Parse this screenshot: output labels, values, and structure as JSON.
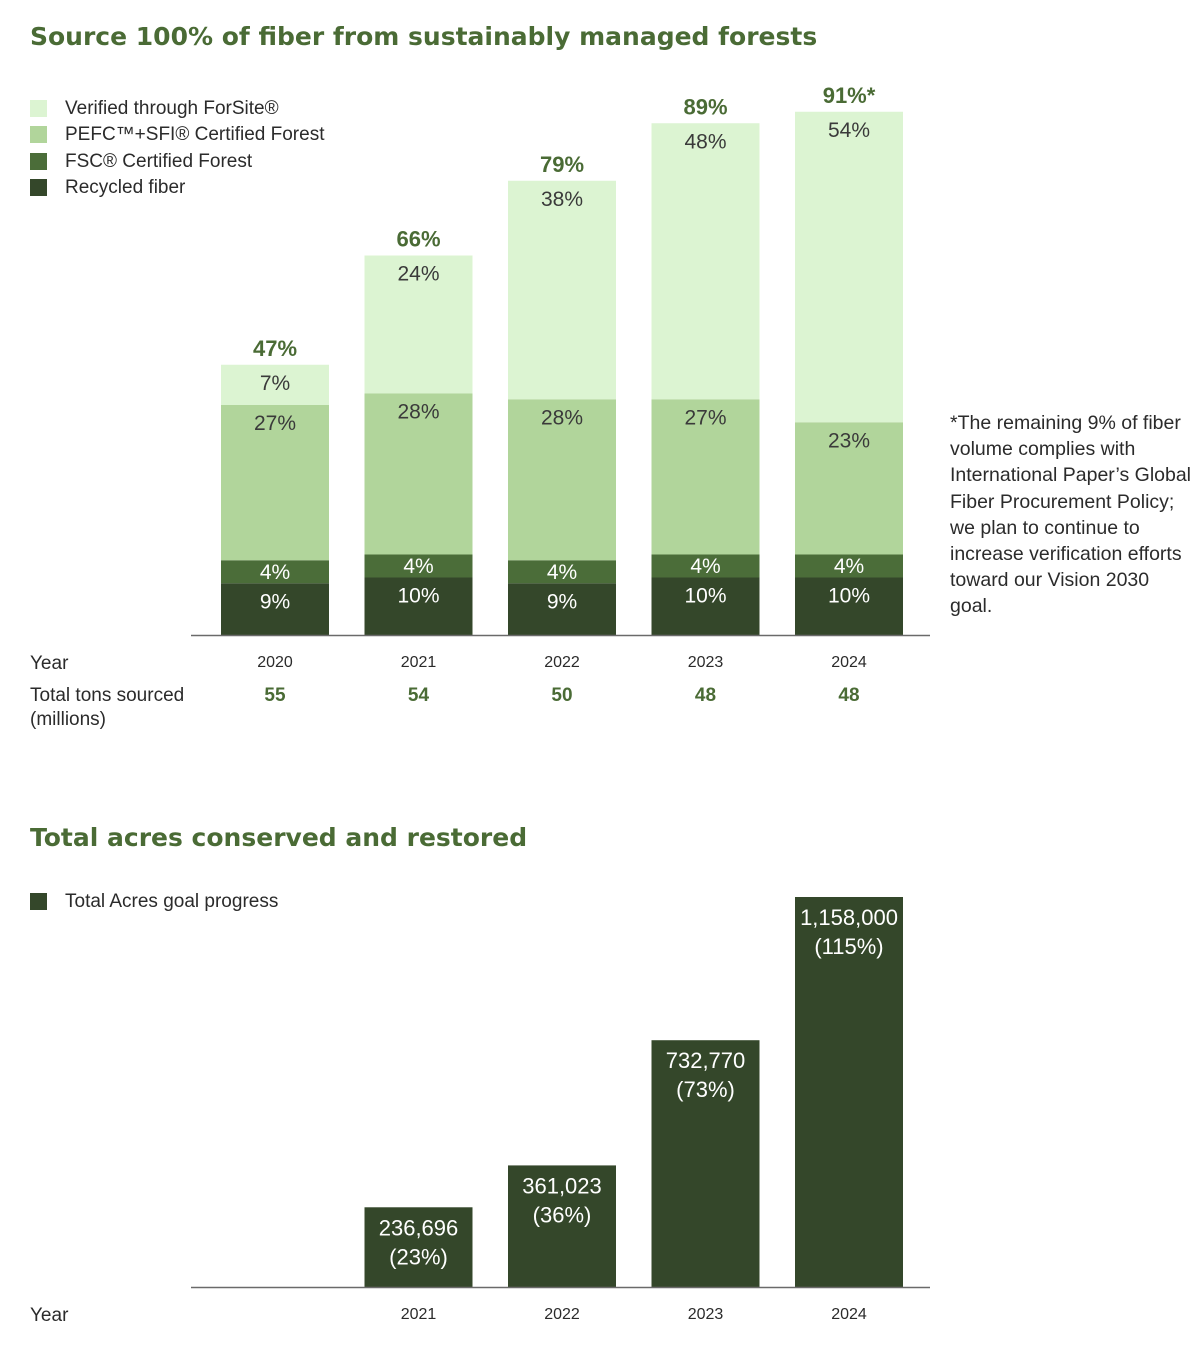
{
  "chart_data": [
    {
      "type": "bar",
      "stacked": true,
      "title": "Source 100% of fiber from sustainably managed forests",
      "categories": [
        "2020",
        "2021",
        "2022",
        "2023",
        "2024"
      ],
      "series": [
        {
          "name": "Recycled fiber",
          "values": [
            9,
            10,
            9,
            10,
            10
          ],
          "labels": [
            "9%",
            "10%",
            "9%",
            "10%",
            "10%"
          ],
          "color": "#34472a",
          "text_color": "#ffffff"
        },
        {
          "name": "FSC® Certified Forest",
          "values": [
            4,
            4,
            4,
            4,
            4
          ],
          "labels": [
            "4%",
            "4%",
            "4%",
            "4%",
            "4%"
          ],
          "color": "#4b6d39",
          "text_color": "#ffffff"
        },
        {
          "name": "PEFC™+SFI® Certified Forest",
          "values": [
            27,
            28,
            28,
            27,
            23
          ],
          "labels": [
            "27%",
            "28%",
            "28%",
            "27%",
            "23%"
          ],
          "color": "#b1d59b",
          "text_color": "#3a3a3a"
        },
        {
          "name": "Verified through ForSite®",
          "values": [
            7,
            24,
            38,
            48,
            54
          ],
          "labels": [
            "7%",
            "24%",
            "38%",
            "48%",
            "54%"
          ],
          "color": "#dcf4d2",
          "text_color": "#3a3a3a"
        }
      ],
      "totals": [
        "47%",
        "66%",
        "79%",
        "89%",
        "91%*"
      ],
      "ylim": [
        0,
        100
      ],
      "legend_position": "top-left",
      "xlabel": "Year",
      "tons_label": "Total tons sourced (millions)",
      "tons_values": [
        55,
        54,
        50,
        48,
        48
      ],
      "footnote": "*The remaining 9% of fiber volume complies with International Paper’s Global Fiber Procurement Policy; we plan to continue to increase verification efforts toward our Vision 2030 goal."
    },
    {
      "type": "bar",
      "title": "Total acres conserved and restored",
      "categories": [
        "2021",
        "2022",
        "2023",
        "2024"
      ],
      "series": [
        {
          "name": "Total Acres goal progress",
          "values": [
            236696,
            361023,
            732770,
            1158000
          ],
          "color": "#34472a"
        }
      ],
      "value_labels": [
        "236,696",
        "361,023",
        "732,770",
        "1,158,000"
      ],
      "percent_labels": [
        "(23%)",
        "(36%)",
        "(73%)",
        "(115%)"
      ],
      "xlabel": "Year",
      "legend_position": "top-left"
    }
  ]
}
